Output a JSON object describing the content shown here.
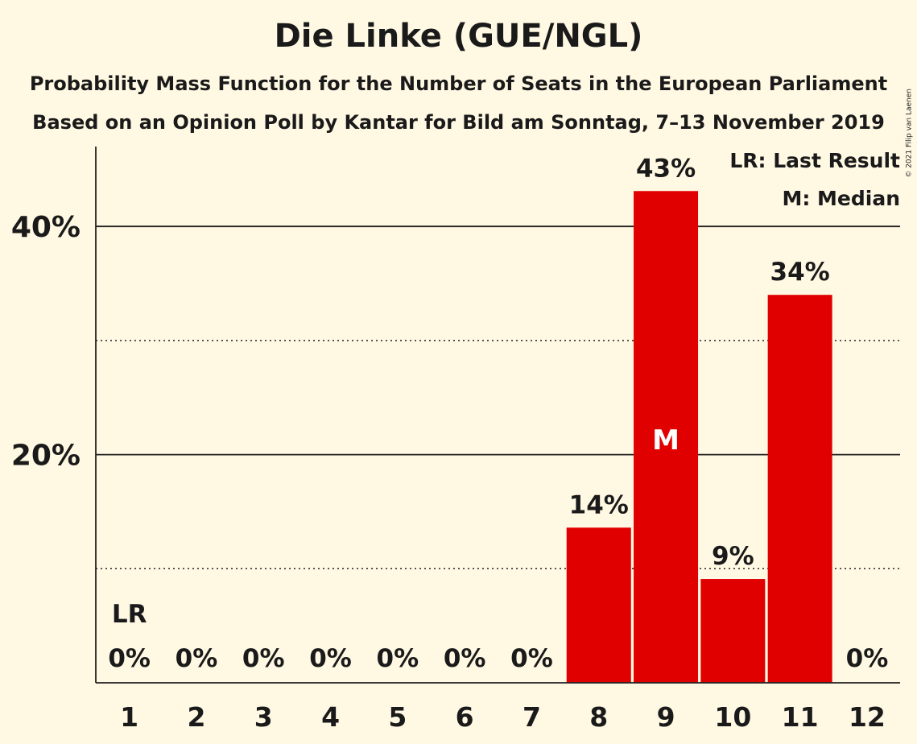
{
  "title": "Die Linke (GUE/NGL)",
  "subtitle_1": "Probability Mass Function for the Number of Seats in the European Parliament",
  "subtitle_2": "Based on an Opinion Poll by Kantar for Bild am Sonntag, 7–13 November 2019",
  "copyright": "© 2021 Filip van Laenen",
  "legend": {
    "last_result": "LR: Last Result",
    "median": "M: Median"
  },
  "colors": {
    "background": "#fff8e3",
    "bar": "#e00000"
  },
  "chart_data": {
    "type": "bar",
    "categories": [
      "1",
      "2",
      "3",
      "4",
      "5",
      "6",
      "7",
      "8",
      "9",
      "10",
      "11",
      "12"
    ],
    "values": [
      0,
      0,
      0,
      0,
      0,
      0,
      0,
      13.6,
      43.1,
      9.1,
      34.0,
      0
    ],
    "data_labels": [
      "0%",
      "0%",
      "0%",
      "0%",
      "0%",
      "0%",
      "0%",
      "14%",
      "43%",
      "9%",
      "34%",
      "0%"
    ],
    "ylim": [
      0,
      47
    ],
    "y_ticks": [
      {
        "value": 20,
        "label": "20%"
      },
      {
        "value": 40,
        "label": "40%"
      }
    ],
    "y_minor_gridlines": [
      10,
      30
    ],
    "last_result": {
      "category": "1",
      "label": "LR"
    },
    "median": {
      "category": "9",
      "label": "M"
    }
  }
}
